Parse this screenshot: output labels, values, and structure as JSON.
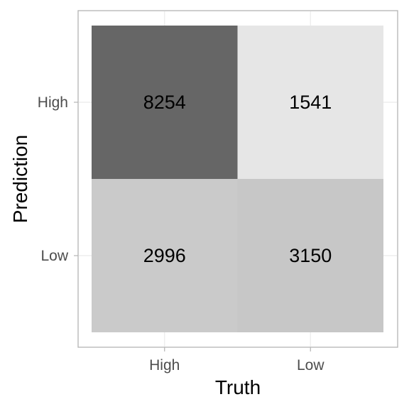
{
  "chart_data": {
    "type": "heatmap",
    "title": "",
    "xlabel": "Truth",
    "ylabel": "Prediction",
    "x_categories": [
      "High",
      "Low"
    ],
    "y_categories": [
      "High",
      "Low"
    ],
    "cells": [
      {
        "x": "High",
        "y": "High",
        "value": 8254
      },
      {
        "x": "Low",
        "y": "High",
        "value": 1541
      },
      {
        "x": "High",
        "y": "Low",
        "value": 2996
      },
      {
        "x": "Low",
        "y": "Low",
        "value": 3150
      }
    ],
    "grid": true,
    "legend": "none",
    "colors": {
      "low": "#e6e6e6",
      "high": "#666666",
      "panel_border": "#b3b3b3",
      "grid": "#ebebeb"
    }
  }
}
